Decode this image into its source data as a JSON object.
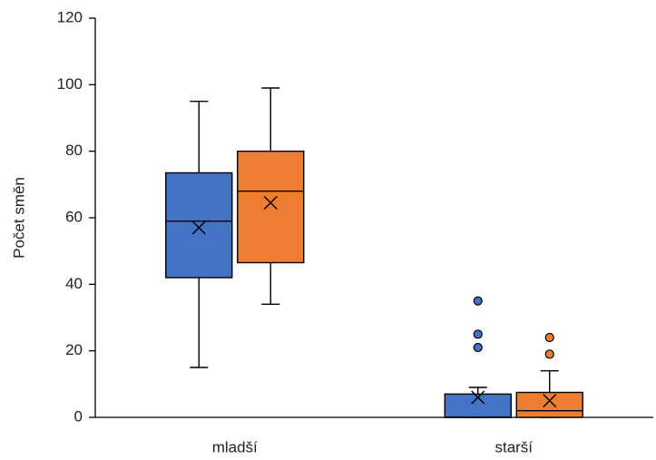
{
  "chart_data": {
    "type": "box",
    "y_label": "Počet směn",
    "categories": [
      "mladší",
      "starší"
    ],
    "ylim": [
      0,
      120
    ],
    "yticks": [
      0,
      20,
      40,
      60,
      80,
      100,
      120
    ],
    "grid": false,
    "series": [
      {
        "color": "#4472c4",
        "boxes": [
          {
            "min": 15,
            "q1": 42,
            "median": 59,
            "q3": 73.5,
            "max": 95,
            "mean": 57,
            "outliers": []
          },
          {
            "min": 0,
            "q1": 0,
            "median": 0,
            "q3": 7,
            "max": 9,
            "mean": 6,
            "outliers": [
              35,
              25,
              21
            ]
          }
        ]
      },
      {
        "color": "#ed7d31",
        "boxes": [
          {
            "min": 34,
            "q1": 46.5,
            "median": 68,
            "q3": 80,
            "max": 99,
            "mean": 64.5,
            "outliers": []
          },
          {
            "min": 0,
            "q1": 0,
            "median": 2,
            "q3": 7.5,
            "max": 14,
            "mean": 5,
            "outliers": [
              24,
              19
            ]
          }
        ]
      }
    ]
  }
}
